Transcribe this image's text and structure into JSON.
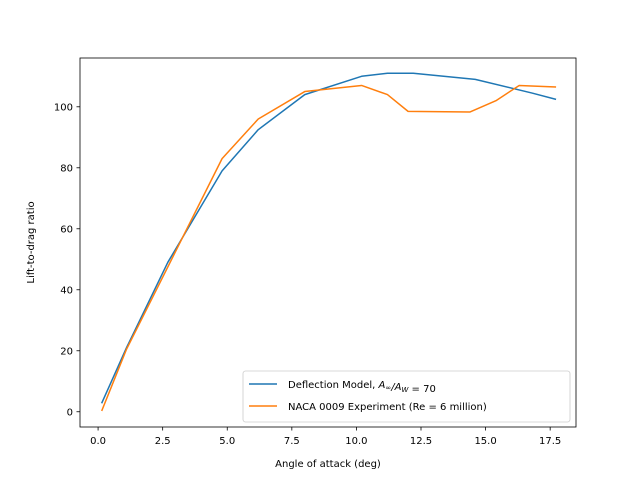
{
  "chart_data": {
    "type": "line",
    "title": "",
    "xlabel": "Angle of attack (deg)",
    "ylabel": "Lift-to-drag ratio",
    "xlim": [
      -0.7,
      18.5
    ],
    "ylim": [
      -5,
      116
    ],
    "xticks": [
      0.0,
      2.5,
      5.0,
      7.5,
      10.0,
      12.5,
      15.0,
      17.5
    ],
    "xtick_labels": [
      "0.0",
      "2.5",
      "5.0",
      "7.5",
      "10.0",
      "12.5",
      "15.0",
      "17.5"
    ],
    "yticks": [
      0,
      20,
      40,
      60,
      80,
      100
    ],
    "ytick_labels": [
      "0",
      "20",
      "40",
      "60",
      "80",
      "100"
    ],
    "grid": false,
    "legend_position": "lower-right",
    "series": [
      {
        "name": "Deflection Model, A∞/Aw = 70",
        "legend_text": "Deflection Model, ",
        "legend_math": [
          "A",
          "∞",
          "/",
          "A",
          "W",
          " = 70"
        ],
        "color": "#1f77b4",
        "x": [
          0.15,
          1.1,
          2.7,
          4.8,
          6.2,
          8.0,
          10.2,
          11.2,
          12.2,
          14.6,
          16.8,
          17.7
        ],
        "y": [
          3,
          21,
          49,
          79,
          92.5,
          104,
          110,
          111,
          111,
          109,
          104.5,
          102.5
        ]
      },
      {
        "name": "NACA 0009 Experiment (Re = 6 million)",
        "legend_text": "NACA 0009 Experiment (Re = 6 million)",
        "color": "#ff7f0e",
        "x": [
          0.15,
          1.1,
          2.7,
          4.8,
          6.2,
          8.0,
          10.2,
          11.2,
          12.0,
          14.4,
          15.4,
          16.3,
          17.7
        ],
        "y": [
          0.5,
          20.5,
          47.5,
          83,
          96,
          105,
          107,
          104,
          98.5,
          98.3,
          102,
          107,
          106.5
        ]
      }
    ]
  }
}
